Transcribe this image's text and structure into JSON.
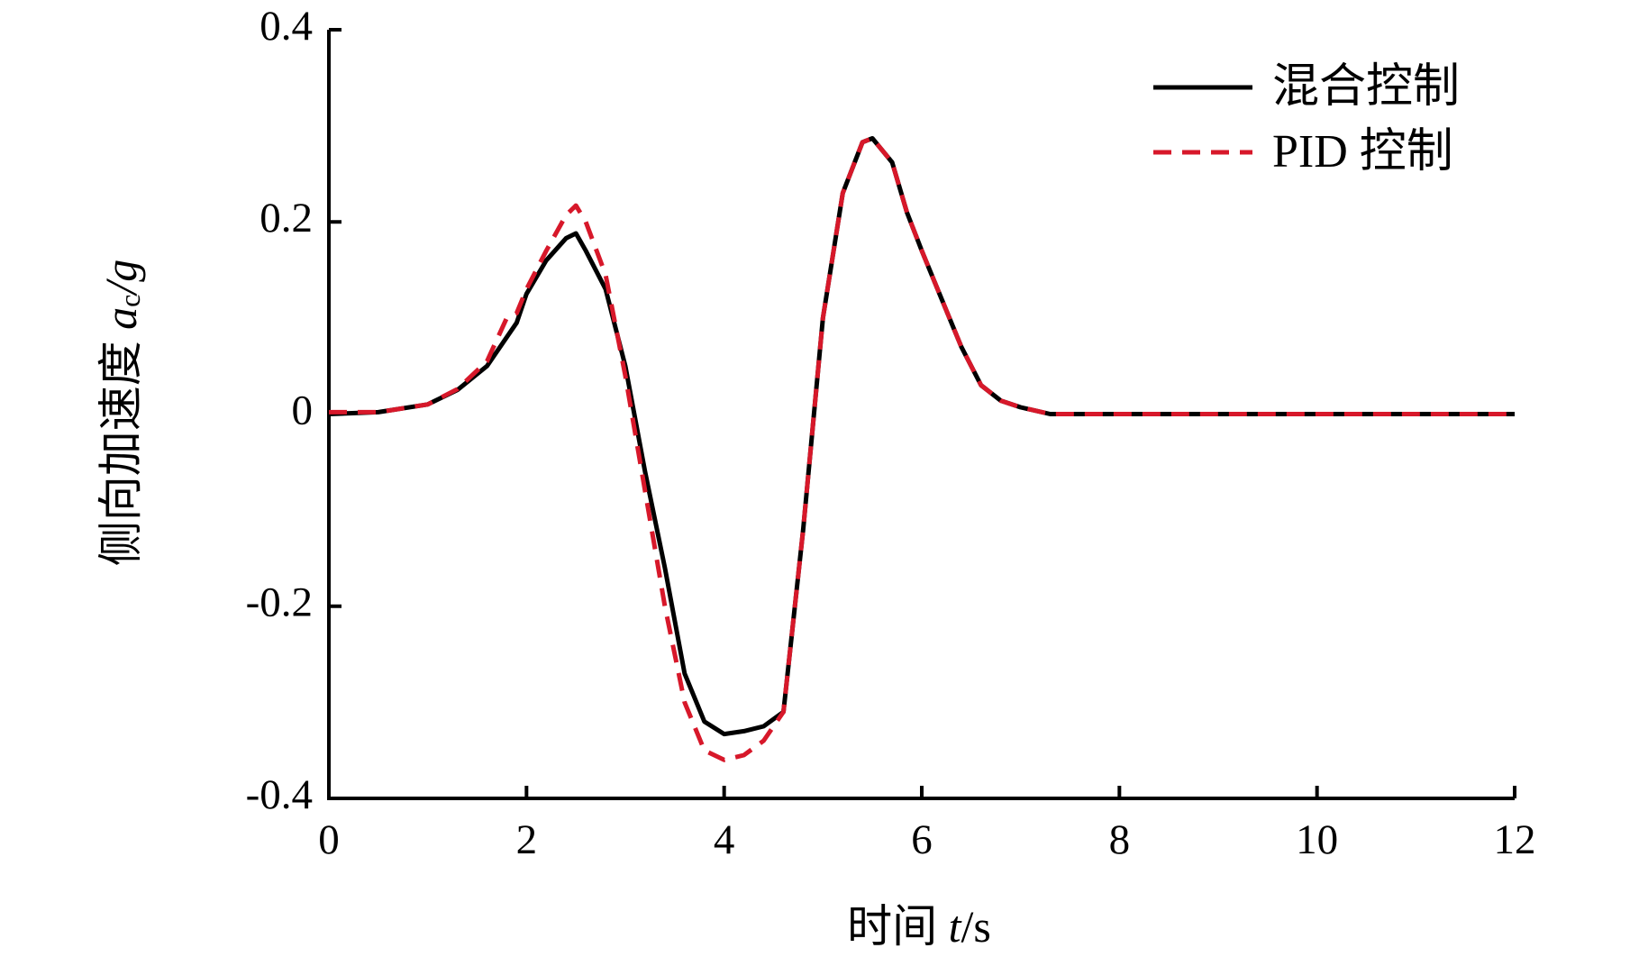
{
  "chart_data": {
    "type": "line",
    "xlabel": {
      "prefix": "时间 ",
      "symbol": "t",
      "suffix": "/s"
    },
    "ylabel": {
      "prefix": "侧向加速度 ",
      "symbol": "a",
      "subscript": "c",
      "suffix": "/g"
    },
    "x": [
      0,
      0.5,
      1,
      1.3,
      1.6,
      1.8,
      1.9,
      2,
      2.2,
      2.4,
      2.5,
      2.6,
      2.8,
      3,
      3.2,
      3.4,
      3.6,
      3.8,
      4,
      4.2,
      4.4,
      4.6,
      4.8,
      5,
      5.2,
      5.4,
      5.5,
      5.7,
      5.85,
      6,
      6.2,
      6.4,
      6.6,
      6.8,
      7,
      7.3,
      8,
      10,
      12
    ],
    "series": [
      {
        "name": "混合控制",
        "color": "#000000",
        "dash": false,
        "values": [
          0,
          0.002,
          0.01,
          0.025,
          0.05,
          0.08,
          0.095,
          0.125,
          0.16,
          0.183,
          0.188,
          0.17,
          0.13,
          0.05,
          -0.06,
          -0.16,
          -0.27,
          -0.32,
          -0.333,
          -0.33,
          -0.325,
          -0.31,
          -0.12,
          0.1,
          0.23,
          0.283,
          0.287,
          0.262,
          0.21,
          0.17,
          0.12,
          0.07,
          0.03,
          0.014,
          0.007,
          0,
          0,
          0,
          0
        ]
      },
      {
        "name": "PID 控制",
        "color": "#d7182a",
        "dash": true,
        "values": [
          0.002,
          0.002,
          0.01,
          0.026,
          0.055,
          0.1,
          0.105,
          0.13,
          0.17,
          0.207,
          0.217,
          0.2,
          0.145,
          0.04,
          -0.08,
          -0.2,
          -0.3,
          -0.35,
          -0.36,
          -0.355,
          -0.34,
          -0.31,
          -0.12,
          0.1,
          0.23,
          0.283,
          0.287,
          0.262,
          0.21,
          0.17,
          0.12,
          0.07,
          0.03,
          0.014,
          0.007,
          0,
          0,
          0,
          0
        ]
      }
    ],
    "xlim": [
      0,
      12
    ],
    "xticks": [
      0,
      2,
      4,
      6,
      8,
      10,
      12
    ],
    "ylim": [
      -0.4,
      0.4
    ],
    "yticks": [
      -0.4,
      -0.2,
      0,
      0.2,
      0.4
    ],
    "grid": false,
    "legend": "upper right"
  }
}
